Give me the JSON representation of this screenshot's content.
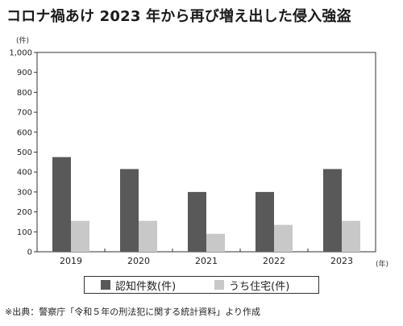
{
  "title": "コロナ禍あけ 2023 年から再び増え出した侵入強盗",
  "y_unit": "(件)",
  "x_unit": "(年)",
  "source": "※出典：警察庁「令和５年の刑法犯に関する統計資料」より作成",
  "colors": {
    "series_0": "#595959",
    "series_1": "#c8c8c8"
  },
  "chart_data": {
    "type": "bar",
    "categories": [
      "2019",
      "2020",
      "2021",
      "2022",
      "2023"
    ],
    "series": [
      {
        "name": "認知件数(件)",
        "values": [
          475,
          415,
          300,
          300,
          415
        ]
      },
      {
        "name": "うち住宅(件)",
        "values": [
          155,
          155,
          90,
          135,
          155
        ]
      }
    ],
    "y_ticks": [
      "0",
      "100",
      "200",
      "300",
      "400",
      "500",
      "600",
      "700",
      "800",
      "900",
      "1,000"
    ],
    "ylim": [
      0,
      1000
    ],
    "legend": "bottom",
    "grid": false
  }
}
